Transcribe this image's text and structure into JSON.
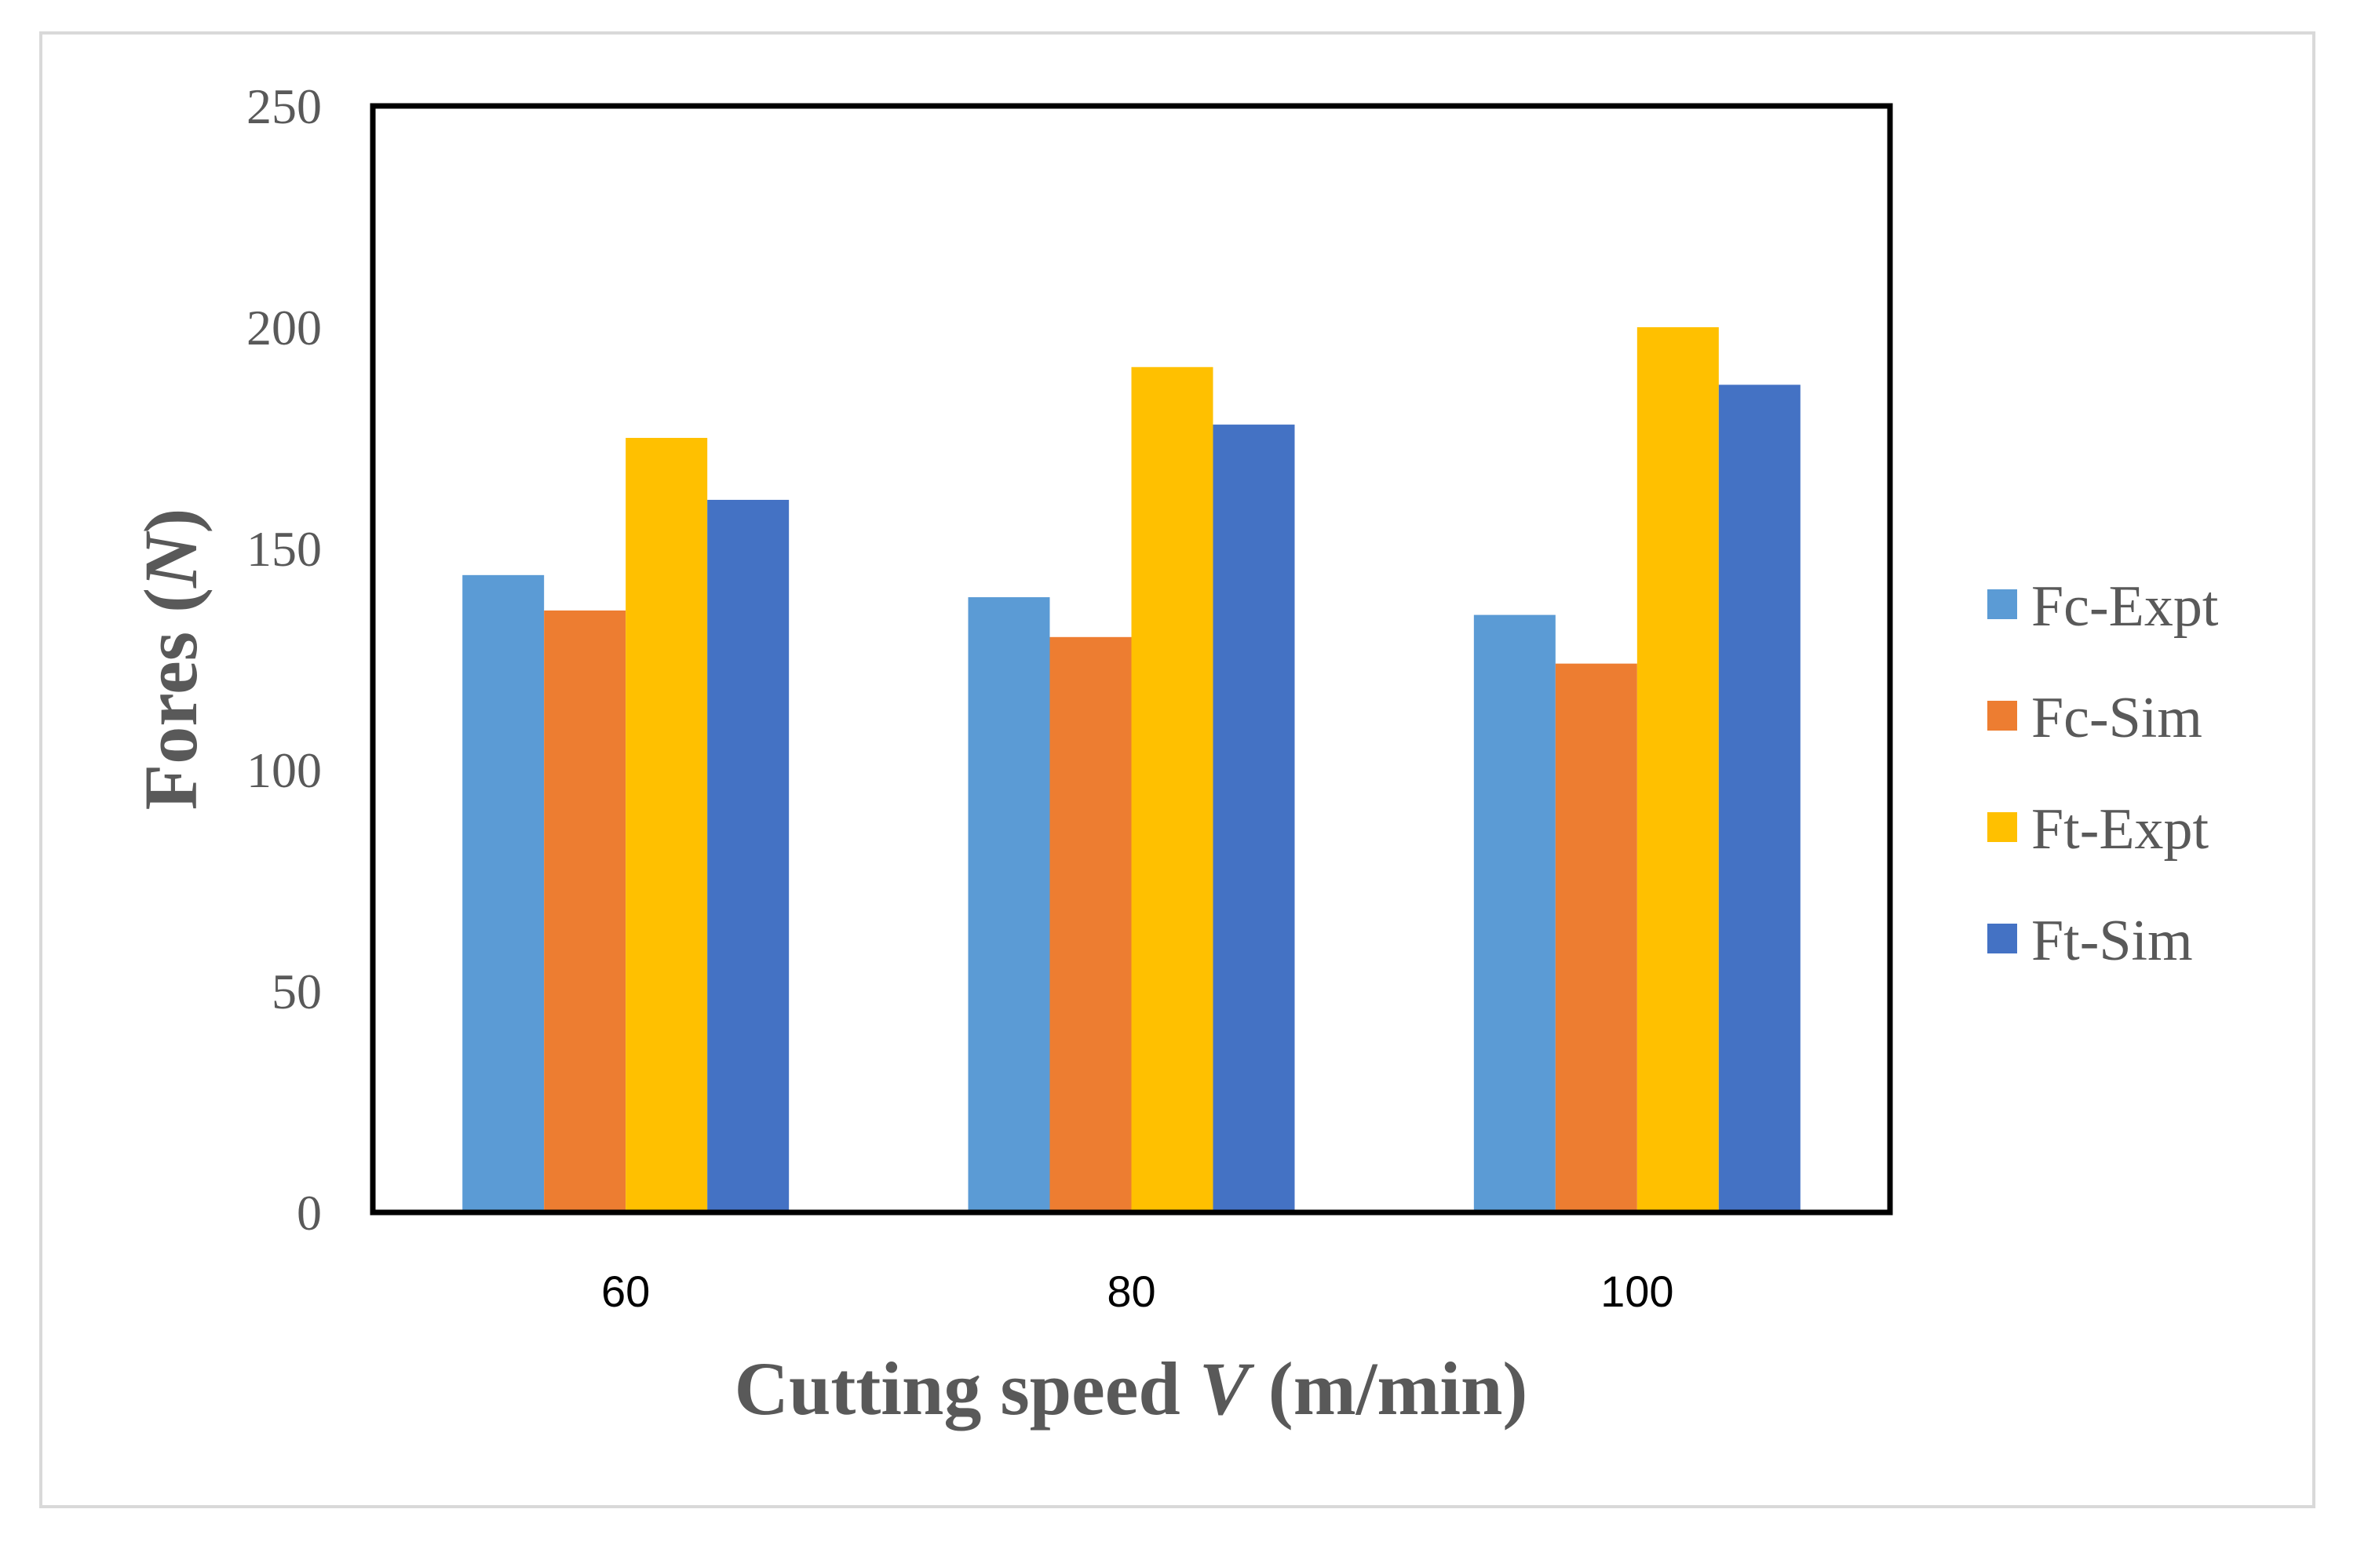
{
  "chart_data": {
    "type": "bar",
    "title": "",
    "categories": [
      "60",
      "80",
      "100"
    ],
    "series": [
      {
        "name": "Fc-Expt",
        "color": "#5b9bd5",
        "values": [
          144,
          139,
          135
        ]
      },
      {
        "name": "Fc-Sim",
        "color": "#ed7d31",
        "values": [
          136,
          130,
          124
        ]
      },
      {
        "name": "Ft-Expt",
        "color": "#ffc000",
        "values": [
          175,
          191,
          200
        ]
      },
      {
        "name": "Ft-Sim",
        "color": "#4472c4",
        "values": [
          161,
          178,
          187
        ]
      }
    ],
    "xlabel_prefix": "Cutting speed ",
    "xlabel_var": "V",
    "xlabel_suffix": " (m/min)",
    "ylabel_prefix": "Fores (",
    "ylabel_var": "N",
    "ylabel_suffix": ")",
    "ylim": [
      0,
      250
    ],
    "yticks": [
      "0",
      "50",
      "100",
      "150",
      "200",
      "250"
    ],
    "grid": false,
    "legend_position": "right"
  }
}
